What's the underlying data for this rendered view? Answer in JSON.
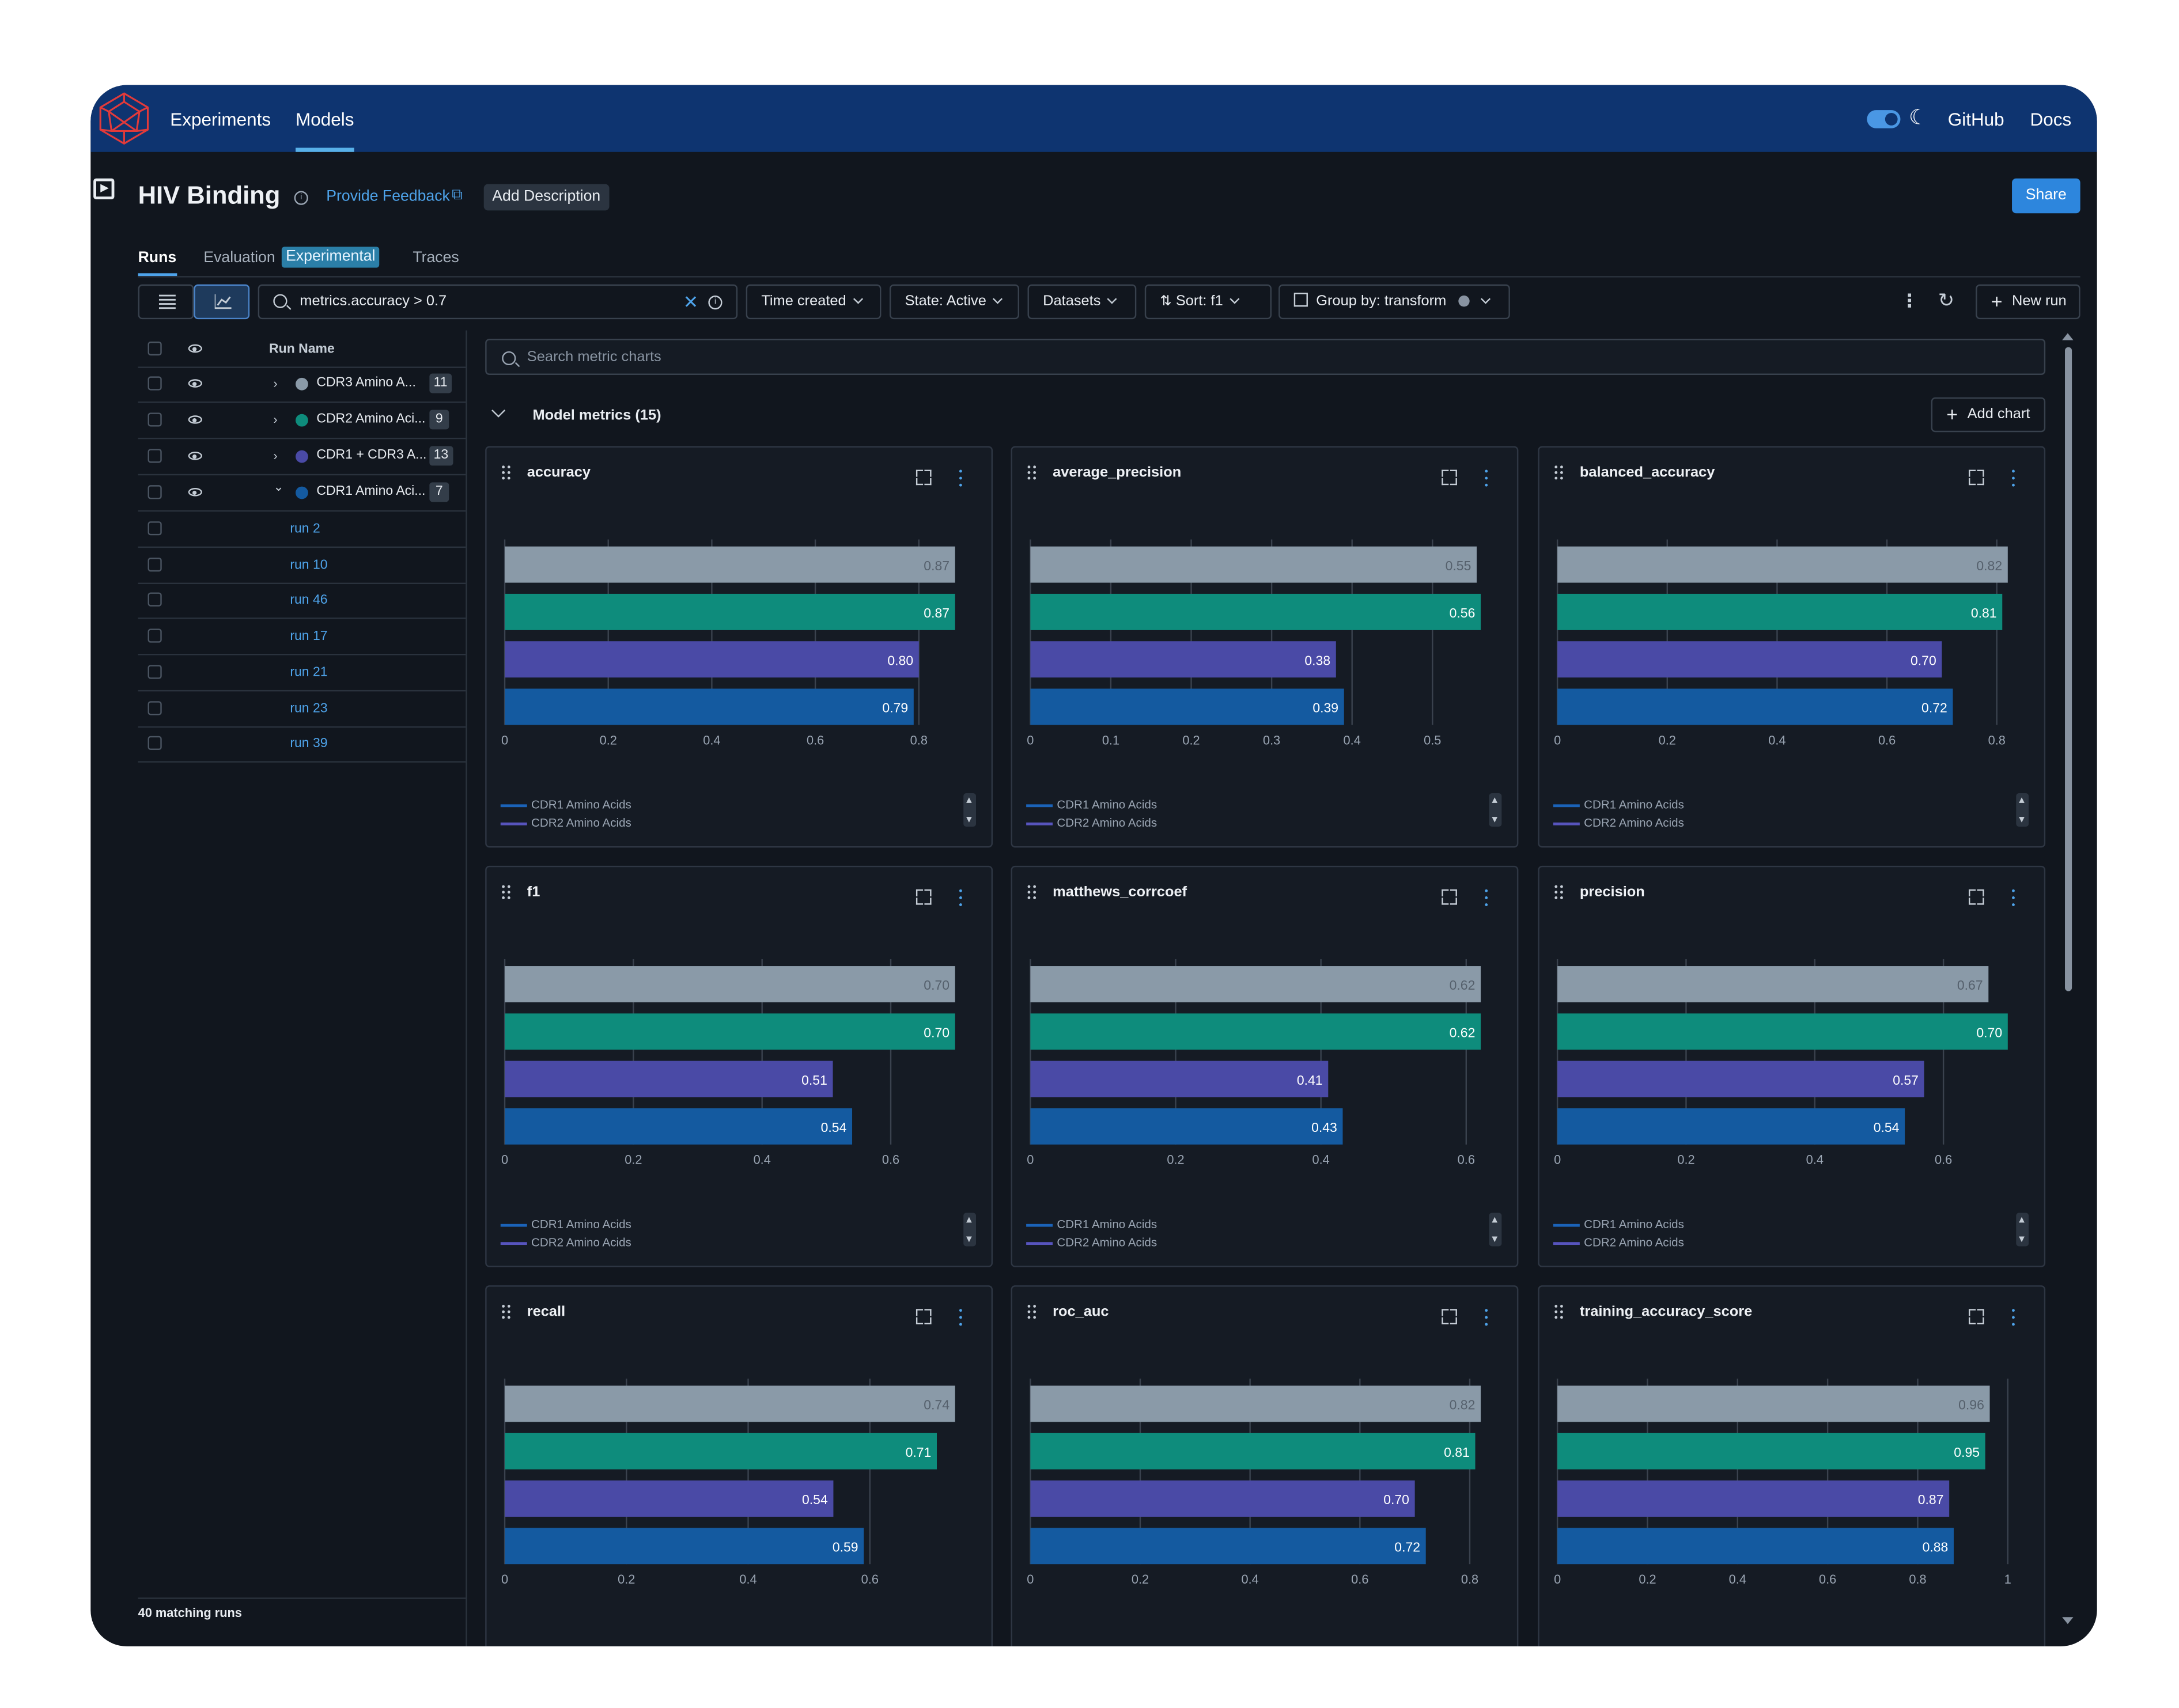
{
  "nav": {
    "items": [
      "Experiments",
      "Models"
    ],
    "active": "Models",
    "links": [
      "GitHub",
      "Docs"
    ]
  },
  "header": {
    "title": "HIV Binding",
    "feedback": "Provide Feedback",
    "add_description": "Add Description",
    "share": "Share"
  },
  "tabs": {
    "runs": "Runs",
    "evaluation": "Evaluation",
    "experimental": "Experimental",
    "traces": "Traces"
  },
  "toolbar": {
    "search_value": "metrics.accuracy > 0.7",
    "time_created": "Time created",
    "state": "State: Active",
    "datasets": "Datasets",
    "sort": "Sort: f1",
    "group_by": "Group by: transform",
    "new_run": "New run"
  },
  "runs_table": {
    "header": "Run Name",
    "groups": [
      {
        "name": "CDR3 Amino A...",
        "count": "11",
        "color": "#8a9aa8",
        "expanded": false
      },
      {
        "name": "CDR2 Amino Aci...",
        "count": "9",
        "color": "#0e8c7c",
        "expanded": false
      },
      {
        "name": "CDR1 + CDR3 A...",
        "count": "13",
        "color": "#4a4aa6",
        "expanded": false
      },
      {
        "name": "CDR1 Amino Aci...",
        "count": "7",
        "color": "#145aa0",
        "expanded": true
      }
    ],
    "runs": [
      "run 2",
      "run 10",
      "run 46",
      "run 17",
      "run 21",
      "run 23",
      "run 39"
    ],
    "matching_runs": "40 matching runs"
  },
  "metrics": {
    "search_placeholder": "Search metric charts",
    "section_title": "Model metrics (15)",
    "add_chart": "Add chart",
    "legend": [
      "CDR1 Amino Acids",
      "CDR2 Amino Acids"
    ]
  },
  "bar_colors": [
    "#8a9aa8",
    "#0e8c7c",
    "#4a4aa6",
    "#145aa0"
  ],
  "chart_data": [
    {
      "type": "bar",
      "orientation": "horizontal",
      "title": "accuracy",
      "values": [
        0.87,
        0.87,
        0.8,
        0.79
      ],
      "labels": [
        "0.87",
        "0.87",
        "0.80",
        "0.79"
      ],
      "xlim": [
        0,
        0.87
      ],
      "ticks": [
        0,
        0.2,
        0.4,
        0.6,
        0.8
      ]
    },
    {
      "type": "bar",
      "orientation": "horizontal",
      "title": "average_precision",
      "values": [
        0.555,
        0.56,
        0.38,
        0.39
      ],
      "labels": [
        "0.55",
        "0.56",
        "0.38",
        "0.39"
      ],
      "xlim": [
        0,
        0.56
      ],
      "ticks": [
        0,
        0.1,
        0.2,
        0.3,
        0.4,
        0.5
      ]
    },
    {
      "type": "bar",
      "orientation": "horizontal",
      "title": "balanced_accuracy",
      "values": [
        0.82,
        0.81,
        0.7,
        0.72
      ],
      "labels": [
        "0.82",
        "0.81",
        "0.70",
        "0.72"
      ],
      "xlim": [
        0,
        0.82
      ],
      "ticks": [
        0,
        0.2,
        0.4,
        0.6,
        0.8
      ]
    },
    {
      "type": "bar",
      "orientation": "horizontal",
      "title": "f1",
      "values": [
        0.7,
        0.7,
        0.51,
        0.54
      ],
      "labels": [
        "0.70",
        "0.70",
        "0.51",
        "0.54"
      ],
      "xlim": [
        0,
        0.7
      ],
      "ticks": [
        0,
        0.2,
        0.4,
        0.6
      ]
    },
    {
      "type": "bar",
      "orientation": "horizontal",
      "title": "matthews_corrcoef",
      "values": [
        0.62,
        0.62,
        0.41,
        0.43
      ],
      "labels": [
        "0.62",
        "0.62",
        "0.41",
        "0.43"
      ],
      "xlim": [
        0,
        0.62
      ],
      "ticks": [
        0,
        0.2,
        0.4,
        0.6
      ]
    },
    {
      "type": "bar",
      "orientation": "horizontal",
      "title": "precision",
      "values": [
        0.67,
        0.7,
        0.57,
        0.54
      ],
      "labels": [
        "0.67",
        "0.70",
        "0.57",
        "0.54"
      ],
      "xlim": [
        0,
        0.7
      ],
      "ticks": [
        0,
        0.2,
        0.4,
        0.6
      ]
    },
    {
      "type": "bar",
      "orientation": "horizontal",
      "title": "recall",
      "values": [
        0.74,
        0.71,
        0.54,
        0.59
      ],
      "labels": [
        "0.74",
        "0.71",
        "0.54",
        "0.59"
      ],
      "xlim": [
        0,
        0.74
      ],
      "ticks": [
        0,
        0.2,
        0.4,
        0.6
      ]
    },
    {
      "type": "bar",
      "orientation": "horizontal",
      "title": "roc_auc",
      "values": [
        0.82,
        0.81,
        0.7,
        0.72
      ],
      "labels": [
        "0.82",
        "0.81",
        "0.70",
        "0.72"
      ],
      "xlim": [
        0,
        0.82
      ],
      "ticks": [
        0,
        0.2,
        0.4,
        0.6,
        0.8
      ]
    },
    {
      "type": "bar",
      "orientation": "horizontal",
      "title": "training_accuracy_score",
      "values": [
        0.96,
        0.95,
        0.87,
        0.88
      ],
      "labels": [
        "0.96",
        "0.95",
        "0.87",
        "0.88"
      ],
      "xlim": [
        0,
        1.0
      ],
      "ticks": [
        0,
        0.2,
        0.4,
        0.6,
        0.8,
        1
      ]
    }
  ]
}
